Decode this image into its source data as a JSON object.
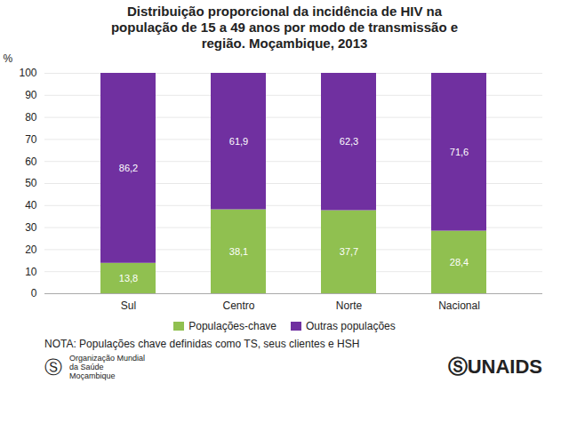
{
  "chart_data": {
    "type": "bar",
    "title": "Distribuição proporcional da incidência de HIV na\npopulação de 15 a 49 anos por modo de transmissão e\nregião. Moçambique, 2013",
    "categories": [
      "Sul",
      "Centro",
      "Norte",
      "Nacional"
    ],
    "series": [
      {
        "name": "Populações-chave",
        "color": "#90c050",
        "values": [
          13.8,
          38.1,
          37.7,
          28.4
        ],
        "value_labels": [
          "13,8",
          "38,1",
          "37,7",
          "28,4"
        ]
      },
      {
        "name": "Outras populações",
        "color": "#7030a0",
        "values": [
          86.2,
          61.9,
          62.3,
          71.6
        ],
        "value_labels": [
          "86,2",
          "61,9",
          "62,3",
          "71,6"
        ]
      }
    ],
    "ylabel": "%",
    "ylim": [
      0,
      100
    ],
    "yticks": [
      0,
      10,
      20,
      30,
      40,
      50,
      60,
      70,
      80,
      90,
      100
    ],
    "stacked": true,
    "data_labels": true,
    "grid": true,
    "legend": "bottom",
    "annotations": [
      "NOTA: Populações chave definidas como TS, seus clientes e HSH",
      "Ⓢ",
      "Organização Mundial\nda Saúde\nMoçambique",
      "ⓈUNAIDS"
    ]
  }
}
